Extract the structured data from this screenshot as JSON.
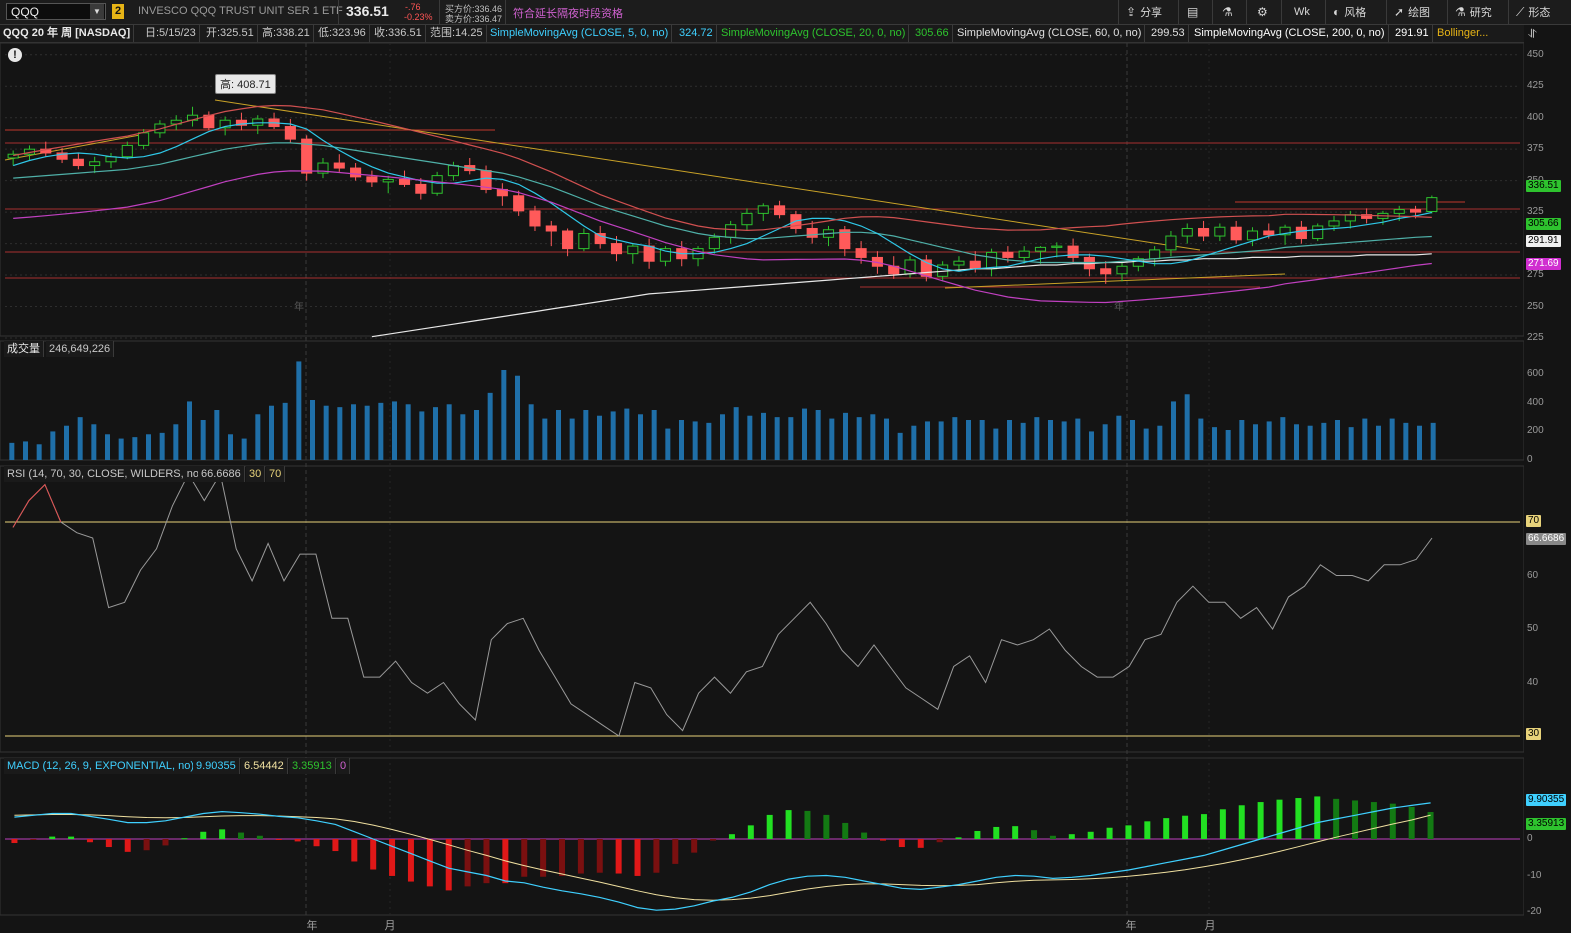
{
  "toolbar": {
    "symbol": "QQQ",
    "dropdown_glyph": "▼",
    "badge": "2",
    "description": "INVESCO QQQ TRUST UNIT SER 1 ETF",
    "price": "336.51",
    "change": "-.76",
    "change_pct": "-0.23%",
    "bid": "买方价:336.46",
    "ask": "卖方价:336.47",
    "extended": "符合延长隔夜时段资格",
    "share": "分享",
    "interval": "Wk",
    "style": "风格",
    "drawings": "绘图",
    "studies": "研究",
    "patterns": "形态",
    "icons": {
      "share": "share-icon",
      "save": "save-icon",
      "flask": "flask-icon",
      "gear": "gear-icon",
      "style": "style-icon",
      "drawings": "cursor-icon",
      "studies": "beaker-icon",
      "patterns": "pattern-icon"
    }
  },
  "info": {
    "title": "QQQ 20 年 周 [NASDAQ]",
    "date": "日:5/15/23",
    "open": "开:325.51",
    "high": "高:338.21",
    "low": "低:323.96",
    "close": "收:336.51",
    "range": "范围:14.25",
    "sma5": "SimpleMovingAvg (CLOSE, 5, 0, no)",
    "sma5_val": "324.72",
    "sma20": "SimpleMovingAvg (CLOSE, 20, 0, no)",
    "sma20_val": "305.66",
    "sma60": "SimpleMovingAvg (CLOSE, 60, 0, no)",
    "sma60_val": "299.53",
    "sma200": "SimpleMovingAvg (CLOSE, 200, 0, no)",
    "sma200_val": "291.91",
    "bollinger": "Bollinger...",
    "alert": "!",
    "high_marker": "高: 408.71",
    "year_marker_1": "年",
    "year_marker_2": "年"
  },
  "volume_pane": {
    "label": "成交量",
    "value": "246,649,226"
  },
  "rsi_pane": {
    "label": "RSI (14, 70, 30, CLOSE, WILDERS, no)",
    "value": "66.6686",
    "low": "30",
    "high": "70"
  },
  "macd_pane": {
    "label": "MACD (12, 26, 9, EXPONENTIAL, no)",
    "value": "9.90355",
    "avg": "6.54442",
    "diff": "3.35913",
    "zero": "0"
  },
  "x_axis": [
    "年",
    "月",
    "年",
    "月"
  ],
  "price_axis": [
    "450",
    "425",
    "400",
    "375",
    "350",
    "325",
    "300",
    "275",
    "250",
    "225"
  ],
  "volume_axis": [
    "600",
    "400",
    "200",
    "0"
  ],
  "rsi_axis": [
    "70",
    "60",
    "50",
    "40",
    "30"
  ],
  "macd_axis": [
    "0",
    "-10",
    "-20"
  ],
  "right_tags": {
    "price": "336.51",
    "sma20": "305.66",
    "sma200": "291.91",
    "lower_band": "271.69",
    "rsi70": "70",
    "rsi": "66.6686",
    "rsi30": "30",
    "macd": "9.90355",
    "diff": "3.35913"
  },
  "chart_data": {
    "type": "candlestick",
    "symbol": "QQQ",
    "ohlc": [
      [
        368,
        374,
        362,
        371
      ],
      [
        371,
        378,
        366,
        375
      ],
      [
        375,
        381,
        369,
        372
      ],
      [
        372,
        376,
        364,
        367
      ],
      [
        367,
        372,
        359,
        362
      ],
      [
        362,
        369,
        356,
        365
      ],
      [
        365,
        372,
        360,
        369
      ],
      [
        369,
        381,
        367,
        378
      ],
      [
        378,
        391,
        375,
        388
      ],
      [
        388,
        398,
        384,
        395
      ],
      [
        395,
        402,
        390,
        398
      ],
      [
        398,
        408.71,
        393,
        402
      ],
      [
        402,
        405,
        390,
        392
      ],
      [
        392,
        401,
        386,
        398
      ],
      [
        398,
        404,
        390,
        394
      ],
      [
        394,
        402,
        387,
        399
      ],
      [
        399,
        404,
        391,
        393
      ],
      [
        393,
        399,
        380,
        383
      ],
      [
        383,
        386,
        350,
        356
      ],
      [
        356,
        368,
        352,
        364
      ],
      [
        364,
        371,
        357,
        360
      ],
      [
        360,
        364,
        350,
        353
      ],
      [
        353,
        358,
        345,
        349
      ],
      [
        349,
        354,
        340,
        351
      ],
      [
        351,
        358,
        345,
        347
      ],
      [
        347,
        352,
        335,
        340
      ],
      [
        340,
        357,
        338,
        354
      ],
      [
        354,
        365,
        350,
        362
      ],
      [
        362,
        368,
        355,
        358
      ],
      [
        358,
        362,
        340,
        343
      ],
      [
        343,
        348,
        330,
        338
      ],
      [
        338,
        342,
        322,
        326
      ],
      [
        326,
        330,
        310,
        314
      ],
      [
        314,
        318,
        298,
        310
      ],
      [
        310,
        312,
        290,
        296
      ],
      [
        296,
        312,
        294,
        308
      ],
      [
        308,
        314,
        296,
        300
      ],
      [
        300,
        306,
        286,
        292
      ],
      [
        292,
        300,
        284,
        298
      ],
      [
        298,
        304,
        280,
        286
      ],
      [
        286,
        298,
        282,
        296
      ],
      [
        296,
        302,
        282,
        288
      ],
      [
        288,
        298,
        282,
        296
      ],
      [
        296,
        308,
        292,
        305
      ],
      [
        305,
        318,
        300,
        315
      ],
      [
        315,
        328,
        310,
        324
      ],
      [
        324,
        332,
        318,
        330
      ],
      [
        330,
        334,
        320,
        323
      ],
      [
        323,
        326,
        308,
        312
      ],
      [
        312,
        318,
        300,
        305
      ],
      [
        305,
        314,
        298,
        311
      ],
      [
        311,
        314,
        290,
        296
      ],
      [
        296,
        302,
        284,
        289
      ],
      [
        289,
        294,
        276,
        282
      ],
      [
        282,
        290,
        272,
        276
      ],
      [
        276,
        290,
        273,
        287
      ],
      [
        287,
        291,
        270,
        274
      ],
      [
        274,
        286,
        270,
        283
      ],
      [
        283,
        290,
        278,
        286
      ],
      [
        286,
        294,
        277,
        280
      ],
      [
        280,
        296,
        274,
        293
      ],
      [
        293,
        298,
        285,
        289
      ],
      [
        289,
        298,
        284,
        294
      ],
      [
        294,
        298,
        284,
        297
      ],
      [
        297,
        301,
        289,
        298
      ],
      [
        298,
        304,
        284,
        289
      ],
      [
        289,
        292,
        274,
        280
      ],
      [
        280,
        286,
        268,
        276
      ],
      [
        276,
        286,
        270,
        282
      ],
      [
        282,
        290,
        278,
        288
      ],
      [
        288,
        298,
        282,
        295
      ],
      [
        295,
        310,
        290,
        306
      ],
      [
        306,
        316,
        300,
        312
      ],
      [
        312,
        318,
        302,
        306
      ],
      [
        306,
        316,
        302,
        313
      ],
      [
        313,
        318,
        300,
        303
      ],
      [
        303,
        313,
        298,
        310
      ],
      [
        310,
        316,
        304,
        307
      ],
      [
        307,
        315,
        299,
        313
      ],
      [
        313,
        318,
        300,
        304
      ],
      [
        304,
        316,
        302,
        314
      ],
      [
        314,
        322,
        310,
        318
      ],
      [
        318,
        326,
        312,
        323
      ],
      [
        323,
        328,
        316,
        320
      ],
      [
        320,
        326,
        315,
        324
      ],
      [
        324,
        330,
        318,
        327
      ],
      [
        327,
        330,
        320,
        325
      ],
      [
        325.51,
        338.21,
        323.96,
        336.51
      ]
    ],
    "volume_millions": [
      120,
      130,
      110,
      200,
      240,
      300,
      250,
      180,
      150,
      160,
      180,
      190,
      250,
      410,
      280,
      350,
      180,
      150,
      320,
      380,
      400,
      690,
      420,
      380,
      370,
      390,
      380,
      400,
      410,
      390,
      340,
      370,
      390,
      320,
      350,
      470,
      630,
      590,
      390,
      290,
      350,
      290,
      350,
      310,
      340,
      360,
      320,
      350,
      220,
      280,
      270,
      260,
      320,
      370,
      310,
      330,
      300,
      300,
      360,
      350,
      290,
      330,
      300,
      320,
      290,
      190,
      240,
      270,
      270,
      300,
      280,
      280,
      220,
      280,
      260,
      300,
      280,
      270,
      290,
      200,
      250,
      310,
      280,
      220,
      240,
      410,
      460,
      290,
      230,
      210,
      280,
      250,
      270,
      300,
      250,
      240,
      260,
      280,
      230,
      290,
      240,
      290,
      260,
      240,
      260
    ],
    "rsi": [
      69,
      74,
      77,
      70,
      68,
      67,
      54,
      55,
      61,
      65,
      73,
      79,
      74,
      79,
      65,
      59,
      66,
      59,
      64,
      64,
      52,
      52,
      41,
      41,
      44,
      40,
      38,
      40,
      36,
      33,
      48,
      51,
      52,
      46,
      41,
      36,
      34,
      32,
      30,
      40,
      39,
      34,
      31,
      38,
      41,
      38,
      42,
      43,
      49,
      52,
      55,
      51,
      46,
      43,
      47,
      43,
      39,
      37,
      35,
      43,
      45,
      40,
      48,
      47,
      48,
      50,
      46,
      43,
      41,
      41,
      43,
      48,
      49,
      55,
      58,
      55,
      55,
      52,
      54,
      50,
      56,
      58,
      62,
      60,
      60,
      59,
      62,
      62,
      63,
      67
    ],
    "macd": [
      6,
      6.5,
      7,
      7,
      6.2,
      5.4,
      4.5,
      4.5,
      5,
      6,
      7,
      7.5,
      7.2,
      6.8,
      6.2,
      5.8,
      5,
      4,
      2,
      0,
      -2,
      -4,
      -6,
      -8,
      -9,
      -10,
      -11.5,
      -12,
      -13.2,
      -14.2,
      -15,
      -16,
      -17.3,
      -18.8,
      -19.5,
      -19.2,
      -18.3,
      -17,
      -16,
      -14.5,
      -12.5,
      -11,
      -10.2,
      -10,
      -10.5,
      -11.5,
      -12.5,
      -13.5,
      -13.8,
      -13.2,
      -12.5,
      -11.5,
      -10.5,
      -10,
      -10.2,
      -10.8,
      -10.5,
      -10,
      -9.2,
      -8.5,
      -7.5,
      -6.5,
      -5.5,
      -4.5,
      -3,
      -1.5,
      0,
      1.5,
      3,
      4.5,
      5.5,
      6.5,
      7.5,
      8.5,
      9.2,
      9.90355
    ],
    "macd_signal": [
      6.5,
      6.6,
      6.7,
      6.7,
      6.6,
      6.4,
      6.1,
      5.9,
      5.8,
      5.9,
      6.1,
      6.3,
      6.4,
      6.4,
      6.3,
      6.1,
      5.9,
      5.5,
      4.8,
      3.8,
      2.6,
      1.3,
      -0.1,
      -1.6,
      -3.1,
      -4.5,
      -6,
      -7.3,
      -8.5,
      -9.6,
      -10.7,
      -11.8,
      -13,
      -14.2,
      -15.3,
      -16.1,
      -16.6,
      -16.8,
      -16.6,
      -16.2,
      -15.5,
      -14.6,
      -13.7,
      -13,
      -12.5,
      -12.3,
      -12.3,
      -12.5,
      -12.7,
      -12.8,
      -12.7,
      -12.5,
      -12,
      -11.6,
      -11.3,
      -11.2,
      -11.1,
      -10.9,
      -10.6,
      -10.2,
      -9.7,
      -9.1,
      -8.4,
      -7.6,
      -6.7,
      -5.7,
      -4.6,
      -3.4,
      -2.1,
      -0.8,
      0.5,
      1.7,
      2.9,
      4.1,
      5.2,
      6.54442
    ],
    "sma5": [
      362,
      366,
      369,
      371,
      372,
      371,
      369,
      368,
      369,
      372,
      377,
      383,
      389,
      393,
      395,
      396,
      396,
      395,
      391,
      382,
      374,
      367,
      361,
      356,
      353,
      350,
      348,
      348,
      350,
      352,
      351,
      347,
      340,
      332,
      323,
      314,
      306,
      303,
      300,
      298,
      294,
      292,
      292,
      293,
      296,
      300,
      306,
      312,
      318,
      320,
      320,
      318,
      314,
      308,
      300,
      292,
      285,
      280,
      278,
      280,
      281,
      282,
      285,
      288,
      290,
      291,
      291,
      290,
      288,
      286,
      284,
      284,
      286,
      290,
      294,
      298,
      302,
      306,
      308,
      310,
      311,
      312,
      313,
      315,
      317,
      320,
      322,
      324.72
    ],
    "sma20": [
      352,
      353,
      354,
      355,
      356,
      357,
      358,
      359,
      361,
      363,
      366,
      369,
      372,
      375,
      377,
      379,
      380,
      380,
      379,
      378,
      376,
      374,
      372,
      370,
      368,
      366,
      364,
      362,
      360,
      358,
      356,
      353,
      349,
      345,
      340,
      335,
      330,
      326,
      322,
      318,
      314,
      311,
      308,
      306,
      305,
      304,
      304,
      305,
      306,
      307,
      308,
      309,
      309,
      308,
      306,
      303,
      300,
      297,
      294,
      291,
      289,
      287,
      286,
      285,
      285,
      285,
      285,
      285,
      286,
      287,
      288,
      289,
      290,
      291,
      292,
      293,
      294,
      295,
      297,
      298,
      299,
      300,
      301,
      302,
      303,
      304,
      305,
      305.66
    ],
    "sma200": [
      226,
      228,
      230,
      232,
      234,
      236,
      238,
      240,
      242,
      244,
      246,
      248,
      250,
      252,
      254,
      256,
      258,
      260,
      261,
      262,
      263,
      264,
      265,
      266,
      267,
      268,
      269,
      270,
      271,
      272,
      273,
      274,
      275,
      276,
      277,
      278,
      279,
      280,
      280,
      281,
      282,
      283,
      283,
      284,
      284,
      285,
      285,
      286,
      286,
      287,
      287,
      288,
      288,
      288,
      289,
      289,
      289,
      290,
      290,
      290,
      290,
      291,
      291,
      291,
      291,
      291.91
    ]
  }
}
